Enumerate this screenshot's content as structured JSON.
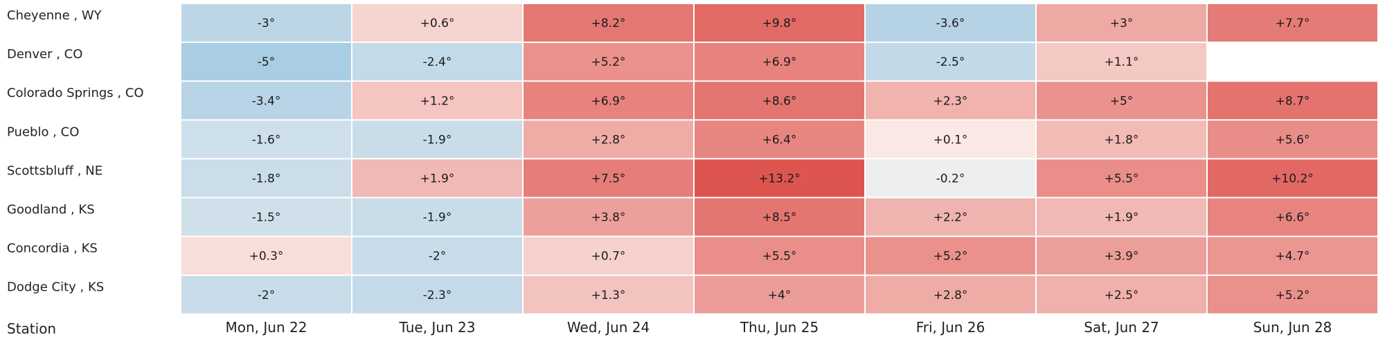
{
  "chart_data": {
    "type": "heatmap",
    "x_header": "Station",
    "columns": [
      "Mon, Jun 22",
      "Tue, Jun 23",
      "Wed, Jun 24",
      "Thu, Jun 25",
      "Fri, Jun 26",
      "Sat, Jun 27",
      "Sun, Jun 28"
    ],
    "rows": [
      "Cheyenne , WY",
      "Denver , CO",
      "Colorado Springs , CO",
      "Pueblo , CO",
      "Scottsbluff , NE",
      "Goodland , KS",
      "Concordia , KS",
      "Dodge City , KS"
    ],
    "values": [
      [
        -3,
        0.6,
        8.2,
        9.8,
        -3.6,
        3,
        7.7
      ],
      [
        -5,
        -2.4,
        5.2,
        6.9,
        -2.5,
        1.1,
        null
      ],
      [
        -3.4,
        1.2,
        6.9,
        8.6,
        2.3,
        5,
        8.7
      ],
      [
        -1.6,
        -1.9,
        2.8,
        6.4,
        0.1,
        1.8,
        5.6
      ],
      [
        -1.8,
        1.9,
        7.5,
        13.2,
        -0.2,
        5.5,
        10.2
      ],
      [
        -1.5,
        -1.9,
        3.8,
        8.5,
        2.2,
        1.9,
        6.6
      ],
      [
        0.3,
        -2,
        0.7,
        5.5,
        5.2,
        3.9,
        4.7
      ],
      [
        -2,
        -2.3,
        1.3,
        4,
        2.8,
        2.5,
        5.2
      ]
    ],
    "labels": [
      [
        "-3°",
        "+0.6°",
        "+8.2°",
        "+9.8°",
        "-3.6°",
        "+3°",
        "+7.7°"
      ],
      [
        "-5°",
        "-2.4°",
        "+5.2°",
        "+6.9°",
        "-2.5°",
        "+1.1°",
        ""
      ],
      [
        "-3.4°",
        "+1.2°",
        "+6.9°",
        "+8.6°",
        "+2.3°",
        "+5°",
        "+8.7°"
      ],
      [
        "-1.6°",
        "-1.9°",
        "+2.8°",
        "+6.4°",
        "+0.1°",
        "+1.8°",
        "+5.6°"
      ],
      [
        "-1.8°",
        "+1.9°",
        "+7.5°",
        "+13.2°",
        "-0.2°",
        "+5.5°",
        "+10.2°"
      ],
      [
        "-1.5°",
        "-1.9°",
        "+3.8°",
        "+8.5°",
        "+2.2°",
        "+1.9°",
        "+6.6°"
      ],
      [
        "+0.3°",
        "-2°",
        "+0.7°",
        "+5.5°",
        "+5.2°",
        "+3.9°",
        "+4.7°"
      ],
      [
        "-2°",
        "-2.3°",
        "+1.3°",
        "+4°",
        "+2.8°",
        "+2.5°",
        "+5.2°"
      ]
    ],
    "color_scale": {
      "negative_max": "#a9cde3",
      "neutral": "#fdf6f2",
      "positive_max": "#de5550"
    },
    "grid": false,
    "legend": "none"
  }
}
